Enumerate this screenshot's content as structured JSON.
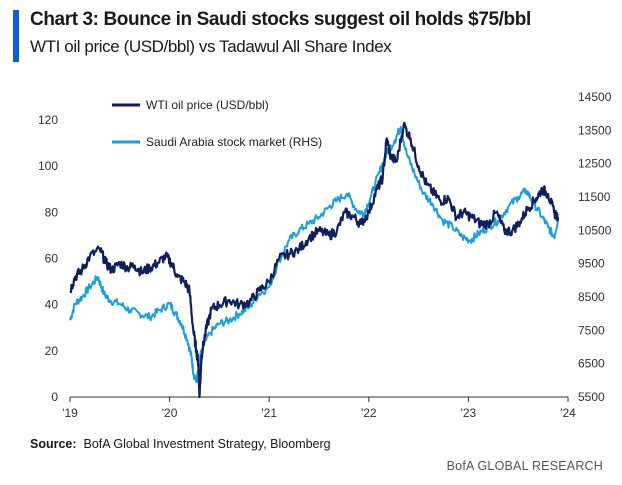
{
  "header": {
    "title": "Chart 3: Bounce in Saudi stocks suggest oil holds $75/bbl",
    "subtitle": "WTI oil price (USD/bbl) vs Tadawul All Share Index"
  },
  "footer": {
    "source_label": "Source:",
    "source_text": "BofA Global Investment Strategy, Bloomberg",
    "brand": "BofA GLOBAL RESEARCH"
  },
  "colors": {
    "accent": "#0a5fd6",
    "wti": "#0f1f5c",
    "saudi": "#1f9fd8",
    "axis": "#333333"
  },
  "chart_data": {
    "type": "line",
    "title": "Chart 3: Bounce in Saudi stocks suggest oil holds $75/bbl",
    "xlabel": "",
    "ylabel": "WTI oil price (USD/bbl)",
    "y2label": "Tadawul All Share Index",
    "x_ticks": [
      "'19",
      "'20",
      "'21",
      "'22",
      "'23",
      "'24"
    ],
    "x_tick_values": [
      2019,
      2020,
      2021,
      2022,
      2023,
      2024
    ],
    "xlim": [
      2019,
      2024
    ],
    "y_ticks": [
      "0",
      "20",
      "40",
      "60",
      "80",
      "100",
      "120"
    ],
    "ylim": [
      0,
      130
    ],
    "y2_ticks": [
      "5500",
      "6500",
      "7500",
      "8500",
      "9500",
      "10500",
      "11500",
      "12500",
      "13500",
      "14500"
    ],
    "y2lim": [
      5500,
      14500
    ],
    "grid": false,
    "legend_position": "top-left",
    "series": [
      {
        "name": "WTI oil price (USD/bbl)",
        "axis": "left",
        "color": "#0f1f5c",
        "x": [
          2019.0,
          2019.05,
          2019.12,
          2019.2,
          2019.3,
          2019.36,
          2019.42,
          2019.5,
          2019.58,
          2019.65,
          2019.72,
          2019.8,
          2019.88,
          2019.96,
          2020.02,
          2020.08,
          2020.15,
          2020.2,
          2020.24,
          2020.27,
          2020.29,
          2020.3,
          2020.32,
          2020.36,
          2020.42,
          2020.5,
          2020.6,
          2020.7,
          2020.8,
          2020.9,
          2021.0,
          2021.1,
          2021.2,
          2021.3,
          2021.4,
          2021.5,
          2021.6,
          2021.68,
          2021.76,
          2021.85,
          2021.92,
          2022.0,
          2022.08,
          2022.14,
          2022.18,
          2022.22,
          2022.28,
          2022.35,
          2022.42,
          2022.5,
          2022.58,
          2022.66,
          2022.72,
          2022.8,
          2022.88,
          2022.95,
          2023.03,
          2023.12,
          2023.2,
          2023.28,
          2023.36,
          2023.44,
          2023.52,
          2023.6,
          2023.68,
          2023.74,
          2023.8,
          2023.86,
          2023.9
        ],
        "values": [
          46,
          52,
          55,
          61,
          64,
          58,
          55,
          58,
          56,
          57,
          54,
          56,
          58,
          61,
          58,
          52,
          50,
          46,
          28,
          20,
          14,
          0,
          18,
          28,
          38,
          40,
          42,
          40,
          41,
          46,
          50,
          60,
          62,
          64,
          69,
          72,
          70,
          72,
          80,
          78,
          75,
          80,
          90,
          95,
          112,
          104,
          102,
          118,
          112,
          100,
          92,
          88,
          85,
          86,
          78,
          80,
          78,
          75,
          75,
          80,
          72,
          72,
          76,
          82,
          86,
          90,
          88,
          80,
          78
        ]
      },
      {
        "name": "Saudi Arabia stock market (RHS)",
        "axis": "right",
        "color": "#1f9fd8",
        "x": [
          2019.0,
          2019.05,
          2019.12,
          2019.2,
          2019.28,
          2019.34,
          2019.4,
          2019.5,
          2019.6,
          2019.7,
          2019.8,
          2019.9,
          2020.0,
          2020.06,
          2020.12,
          2020.18,
          2020.22,
          2020.24,
          2020.27,
          2020.32,
          2020.4,
          2020.5,
          2020.6,
          2020.7,
          2020.8,
          2020.9,
          2021.0,
          2021.1,
          2021.2,
          2021.3,
          2021.4,
          2021.5,
          2021.6,
          2021.68,
          2021.78,
          2021.88,
          2021.95,
          2022.02,
          2022.1,
          2022.18,
          2022.26,
          2022.32,
          2022.38,
          2022.46,
          2022.55,
          2022.64,
          2022.74,
          2022.84,
          2022.94,
          2023.02,
          2023.1,
          2023.2,
          2023.3,
          2023.4,
          2023.5,
          2023.58,
          2023.66,
          2023.74,
          2023.8,
          2023.86,
          2023.9
        ],
        "values": [
          7800,
          8300,
          8500,
          8800,
          9100,
          8600,
          8400,
          8300,
          8100,
          8000,
          7900,
          8100,
          8300,
          8000,
          7700,
          7200,
          6700,
          6200,
          5950,
          6900,
          7400,
          7700,
          7800,
          8000,
          8200,
          8600,
          8800,
          9600,
          10200,
          10500,
          10700,
          10900,
          11200,
          11400,
          11600,
          11100,
          11000,
          11500,
          12200,
          12800,
          13200,
          13600,
          12800,
          12200,
          11600,
          11300,
          10800,
          10600,
          10300,
          10200,
          10400,
          10600,
          10800,
          11200,
          11500,
          11700,
          11300,
          10900,
          10600,
          10300,
          10800
        ]
      }
    ]
  }
}
